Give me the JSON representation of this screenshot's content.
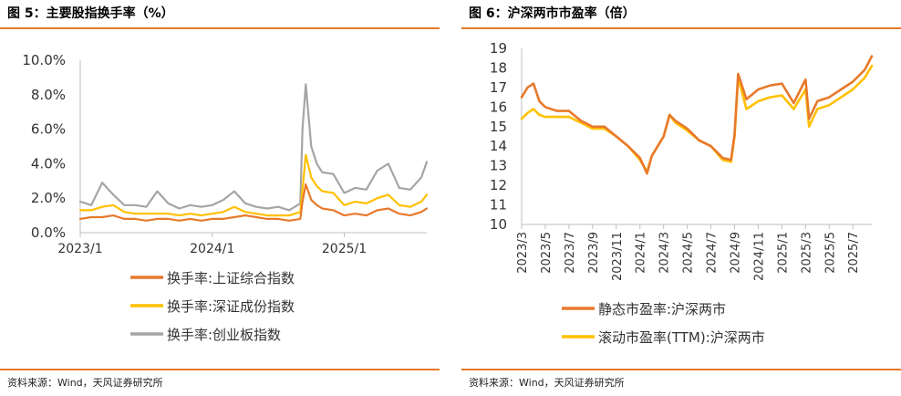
{
  "charts": [
    {
      "title": "图 5：主要股指换手率（%）",
      "source": "资料来源：Wind，天风证券研究所"
    },
    {
      "title": "图 6：沪深两市市盈率（倍）",
      "source": "资料来源：Wind，天风证券研究所"
    }
  ],
  "colors": {
    "accent": "#E8792B",
    "orange": "#E8792B",
    "yellow": "#FFC000",
    "gray": "#A5A5A5"
  },
  "chart_data": [
    {
      "type": "line",
      "title": "",
      "xlabel": "",
      "ylabel": "",
      "y_tick_labels": [
        "0.0%",
        "2.0%",
        "4.0%",
        "6.0%",
        "8.0%",
        "10.0%"
      ],
      "y_ticks": [
        0,
        2,
        4,
        6,
        8,
        10
      ],
      "ylim": [
        0,
        10
      ],
      "x_tick_labels": [
        "2023/1",
        "2024/1",
        "2025/1"
      ],
      "x_ticks": [
        0,
        12,
        24
      ],
      "xlim": [
        0,
        31.5
      ],
      "grid": false,
      "legend_position": "bottom",
      "series": [
        {
          "name": "换手率:上证综合指数",
          "color": "#E8792B",
          "x": [
            0,
            1,
            2,
            3,
            4,
            5,
            6,
            7,
            8,
            9,
            10,
            11,
            12,
            13,
            14,
            15,
            16,
            17,
            18,
            19,
            20,
            20.2,
            20.5,
            21,
            21.5,
            22,
            23,
            24,
            25,
            26,
            27,
            28,
            29,
            30,
            31,
            31.5
          ],
          "values": [
            0.8,
            0.9,
            0.9,
            1.0,
            0.8,
            0.8,
            0.7,
            0.8,
            0.8,
            0.7,
            0.8,
            0.7,
            0.8,
            0.8,
            0.9,
            1.0,
            0.9,
            0.8,
            0.8,
            0.7,
            0.8,
            1.8,
            2.8,
            1.9,
            1.6,
            1.4,
            1.3,
            1.0,
            1.1,
            1.0,
            1.3,
            1.4,
            1.1,
            1.0,
            1.2,
            1.4
          ]
        },
        {
          "name": "换手率:深证成份指数",
          "color": "#FFC000",
          "x": [
            0,
            1,
            2,
            3,
            4,
            5,
            6,
            7,
            8,
            9,
            10,
            11,
            12,
            13,
            14,
            15,
            16,
            17,
            18,
            19,
            20,
            20.2,
            20.5,
            21,
            21.5,
            22,
            23,
            24,
            25,
            26,
            27,
            28,
            29,
            30,
            31,
            31.5
          ],
          "values": [
            1.3,
            1.3,
            1.5,
            1.6,
            1.2,
            1.1,
            1.1,
            1.1,
            1.1,
            1.0,
            1.1,
            1.0,
            1.1,
            1.2,
            1.5,
            1.2,
            1.1,
            1.0,
            1.0,
            1.0,
            1.2,
            2.5,
            4.5,
            3.2,
            2.7,
            2.4,
            2.3,
            1.6,
            1.8,
            1.7,
            2.0,
            2.2,
            1.6,
            1.5,
            1.8,
            2.2
          ]
        },
        {
          "name": "换手率:创业板指数",
          "color": "#A5A5A5",
          "x": [
            0,
            1,
            2,
            3,
            4,
            5,
            6,
            7,
            8,
            9,
            10,
            11,
            12,
            13,
            14,
            15,
            16,
            17,
            18,
            19,
            20,
            20.2,
            20.5,
            21,
            21.5,
            22,
            23,
            24,
            25,
            26,
            27,
            28,
            29,
            30,
            31,
            31.5
          ],
          "values": [
            1.8,
            1.6,
            2.9,
            2.2,
            1.6,
            1.6,
            1.5,
            2.4,
            1.7,
            1.4,
            1.6,
            1.5,
            1.6,
            1.9,
            2.4,
            1.7,
            1.5,
            1.4,
            1.5,
            1.3,
            1.7,
            6.0,
            8.6,
            5.0,
            4.0,
            3.5,
            3.4,
            2.3,
            2.6,
            2.5,
            3.6,
            4.0,
            2.6,
            2.5,
            3.2,
            4.1
          ]
        }
      ]
    },
    {
      "type": "line",
      "title": "",
      "xlabel": "",
      "ylabel": "",
      "y_tick_labels": [
        "10",
        "11",
        "12",
        "13",
        "14",
        "15",
        "16",
        "17",
        "18",
        "19"
      ],
      "y_ticks": [
        10,
        11,
        12,
        13,
        14,
        15,
        16,
        17,
        18,
        19
      ],
      "ylim": [
        10,
        19
      ],
      "x_tick_labels": [
        "2023/3",
        "2023/5",
        "2023/7",
        "2023/9",
        "2023/11",
        "2024/1",
        "2024/3",
        "2024/5",
        "2024/7",
        "2024/9",
        "2024/11",
        "2025/1",
        "2025/3",
        "2025/5",
        "2025/7"
      ],
      "x_ticks": [
        0,
        2,
        4,
        6,
        8,
        10,
        12,
        14,
        16,
        18,
        20,
        22,
        24,
        26,
        28
      ],
      "xlim": [
        0,
        29.6
      ],
      "grid": false,
      "legend_position": "bottom",
      "series": [
        {
          "name": "静态市盈率:沪深两市",
          "color": "#E8792B",
          "x": [
            0,
            0.5,
            1,
            1.5,
            2,
            3,
            4,
            5,
            6,
            7,
            8,
            9,
            10,
            10.6,
            11,
            12,
            12.5,
            13,
            14,
            15,
            16,
            17,
            17.7,
            18,
            18.3,
            19,
            20,
            21,
            22,
            23,
            23.9,
            24,
            24.3,
            25,
            26,
            27,
            28,
            29,
            29.6
          ],
          "values": [
            16.5,
            17.0,
            17.2,
            16.3,
            16.0,
            15.8,
            15.8,
            15.3,
            15.0,
            15.0,
            14.5,
            14.0,
            13.4,
            12.6,
            13.5,
            14.5,
            15.6,
            15.3,
            14.9,
            14.3,
            14.0,
            13.4,
            13.3,
            14.6,
            17.7,
            16.4,
            16.9,
            17.1,
            17.2,
            16.2,
            17.3,
            17.4,
            15.4,
            16.3,
            16.5,
            16.9,
            17.3,
            17.9,
            18.6
          ]
        },
        {
          "name": "滚动市盈率(TTM):沪深两市",
          "color": "#FFC000",
          "x": [
            0,
            0.5,
            1,
            1.5,
            2,
            3,
            4,
            5,
            6,
            7,
            8,
            9,
            10,
            10.6,
            11,
            12,
            12.5,
            13,
            14,
            15,
            16,
            17,
            17.7,
            18,
            18.3,
            19,
            20,
            21,
            22,
            23,
            23.9,
            24,
            24.3,
            25,
            26,
            27,
            28,
            29,
            29.6
          ],
          "values": [
            15.4,
            15.7,
            15.9,
            15.6,
            15.5,
            15.5,
            15.5,
            15.2,
            14.9,
            14.9,
            14.5,
            14.0,
            13.3,
            12.7,
            13.5,
            14.5,
            15.6,
            15.2,
            14.8,
            14.3,
            14.0,
            13.3,
            13.2,
            14.5,
            17.5,
            15.9,
            16.3,
            16.5,
            16.6,
            15.9,
            16.8,
            16.9,
            15.0,
            15.9,
            16.1,
            16.5,
            16.9,
            17.5,
            18.1
          ]
        }
      ]
    }
  ]
}
